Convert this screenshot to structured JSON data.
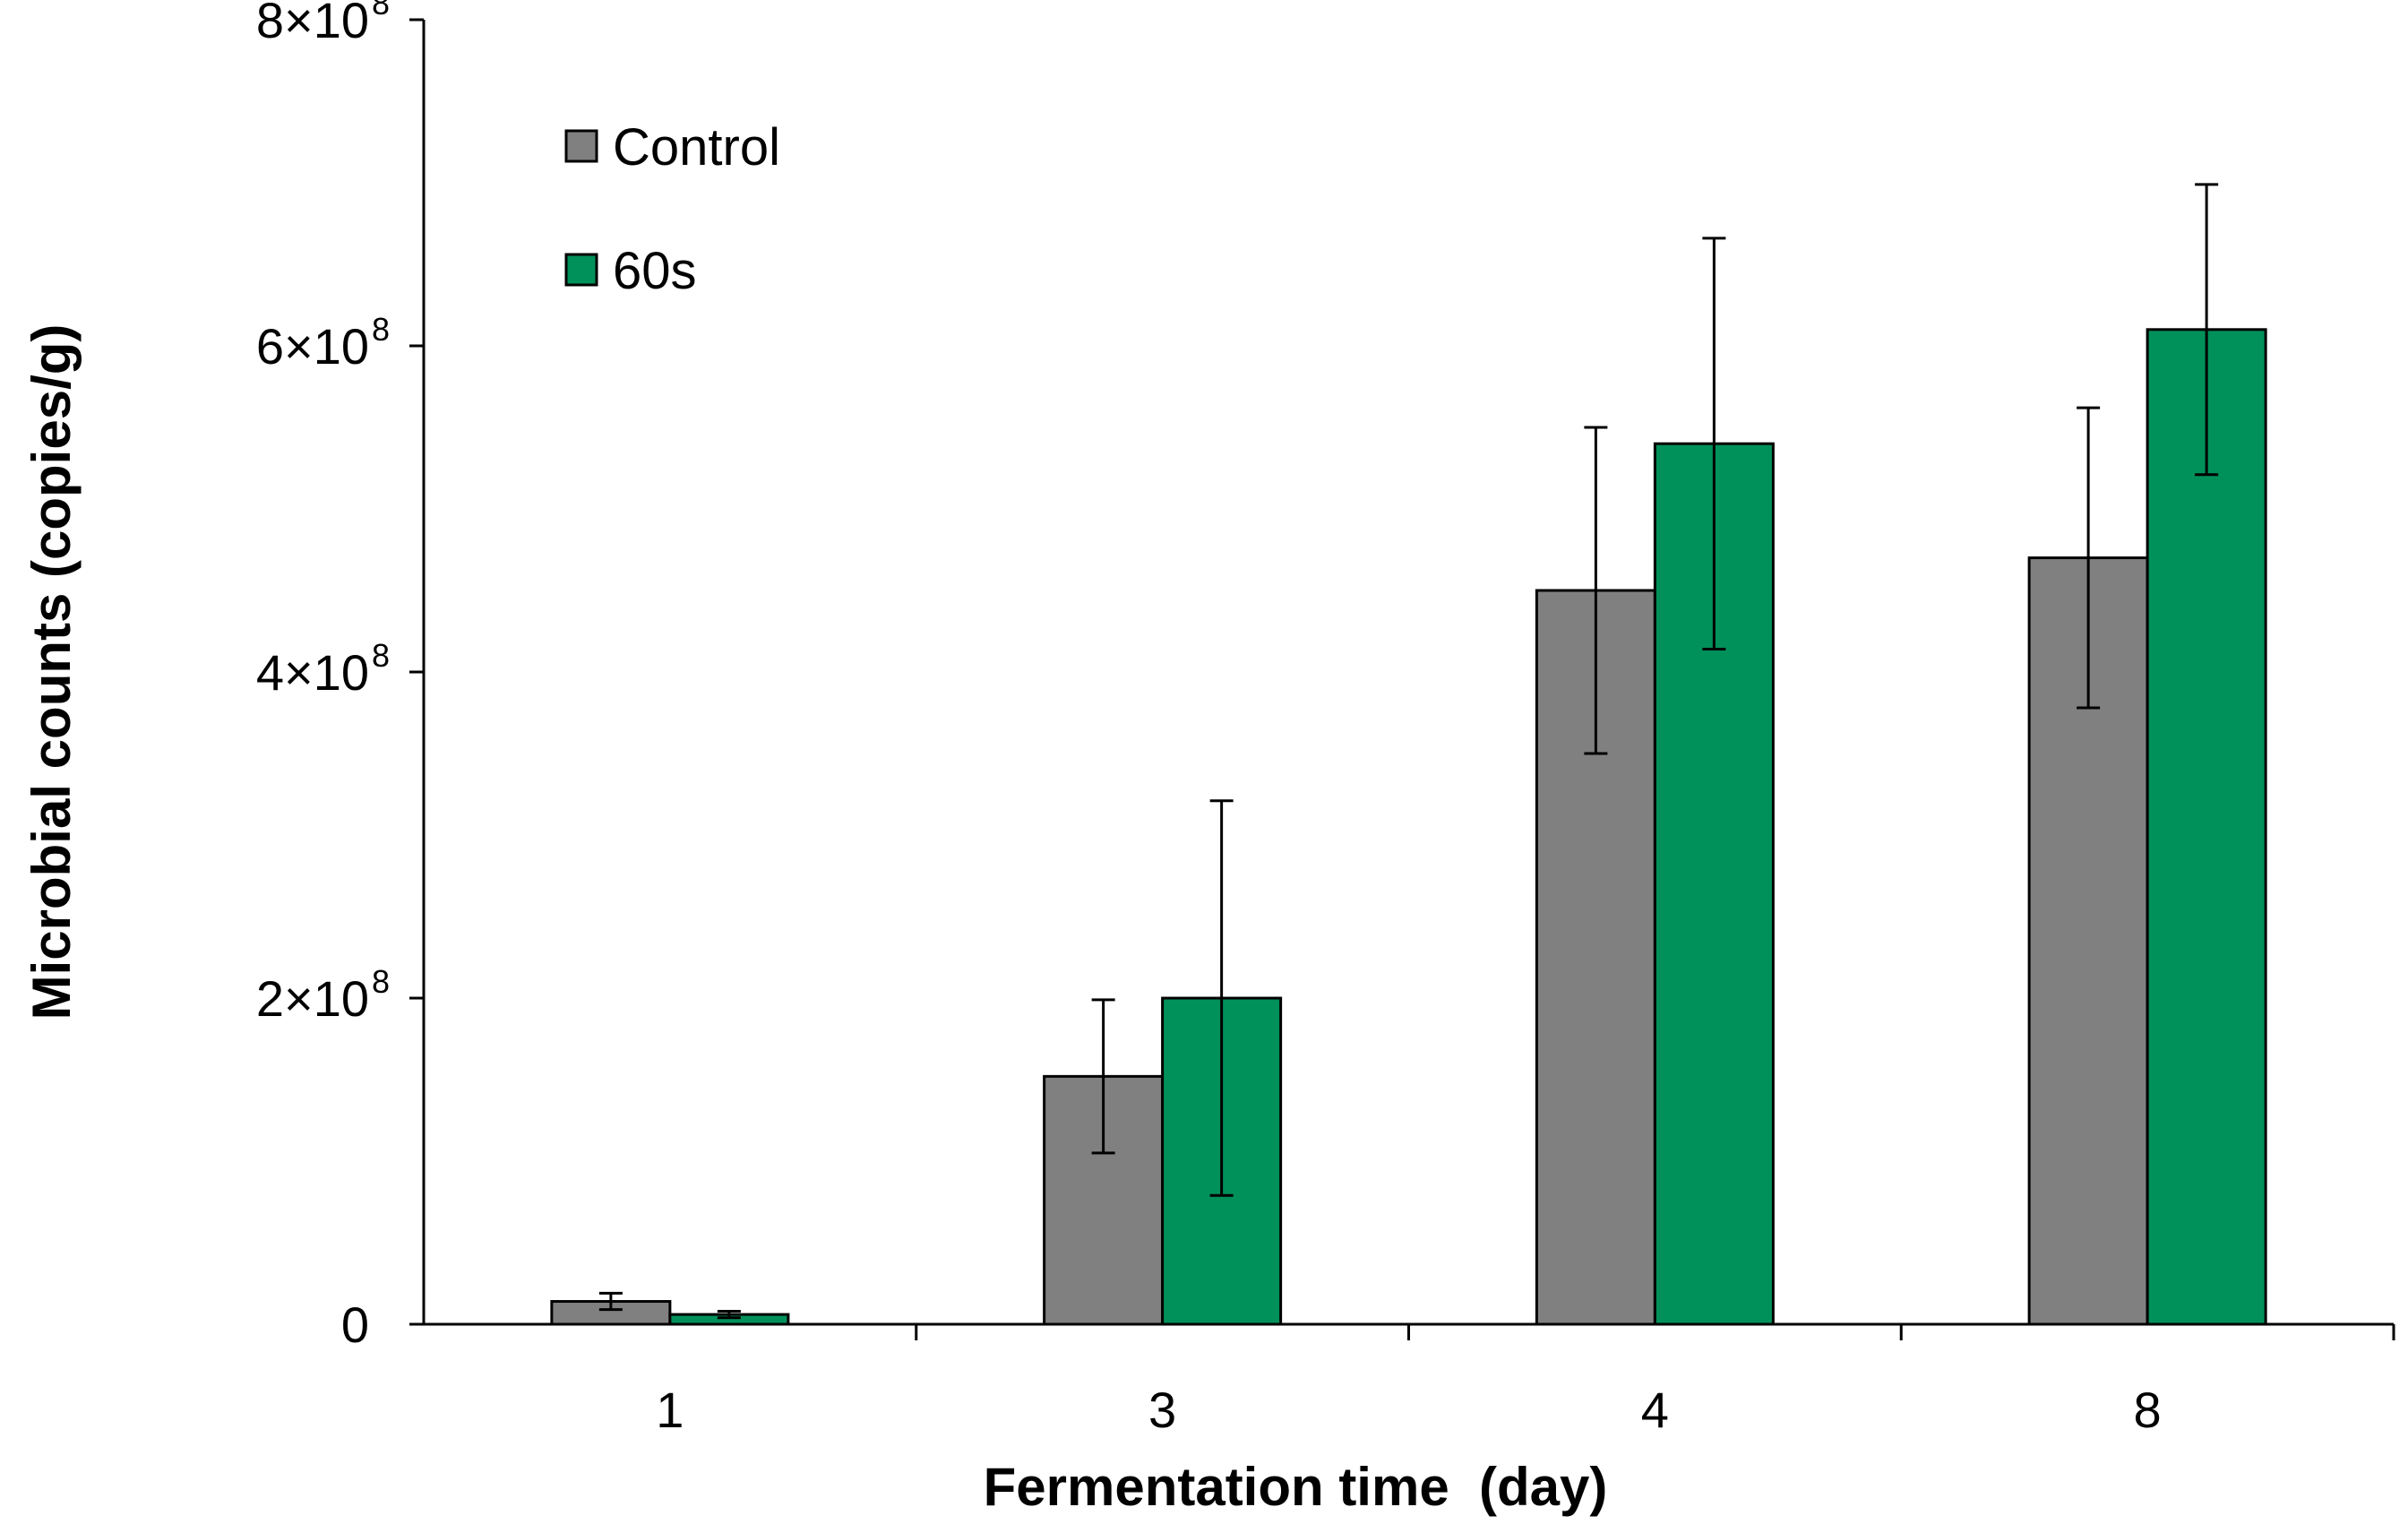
{
  "chart_data": {
    "type": "bar",
    "title": "",
    "xlabel": "Fermentation time  (day)",
    "ylabel": "Microbial counts (copies/g)",
    "categories": [
      "1",
      "3",
      "4",
      "8"
    ],
    "ylim": [
      0,
      800000000
    ],
    "y_ticks": [
      {
        "value": 0,
        "mantissa": "0",
        "exponent": ""
      },
      {
        "value": 200000000,
        "mantissa": "2×10",
        "exponent": "8"
      },
      {
        "value": 400000000,
        "mantissa": "4×10",
        "exponent": "8"
      },
      {
        "value": 600000000,
        "mantissa": "6×10",
        "exponent": "8"
      },
      {
        "value": 800000000,
        "mantissa": "8×10",
        "exponent": "8"
      }
    ],
    "series": [
      {
        "name": "Control",
        "color": "#808080",
        "values": [
          14000000,
          152000000,
          450000000,
          470000000
        ],
        "errors": [
          5000000,
          47000000,
          100000000,
          92000000
        ]
      },
      {
        "name": "60s",
        "color": "#00915A",
        "values": [
          6000000,
          200000000,
          540000000,
          610000000
        ],
        "errors": [
          2000000,
          121000000,
          126000000,
          89000000
        ]
      }
    ],
    "legend_position": "top-left",
    "grid": false
  }
}
